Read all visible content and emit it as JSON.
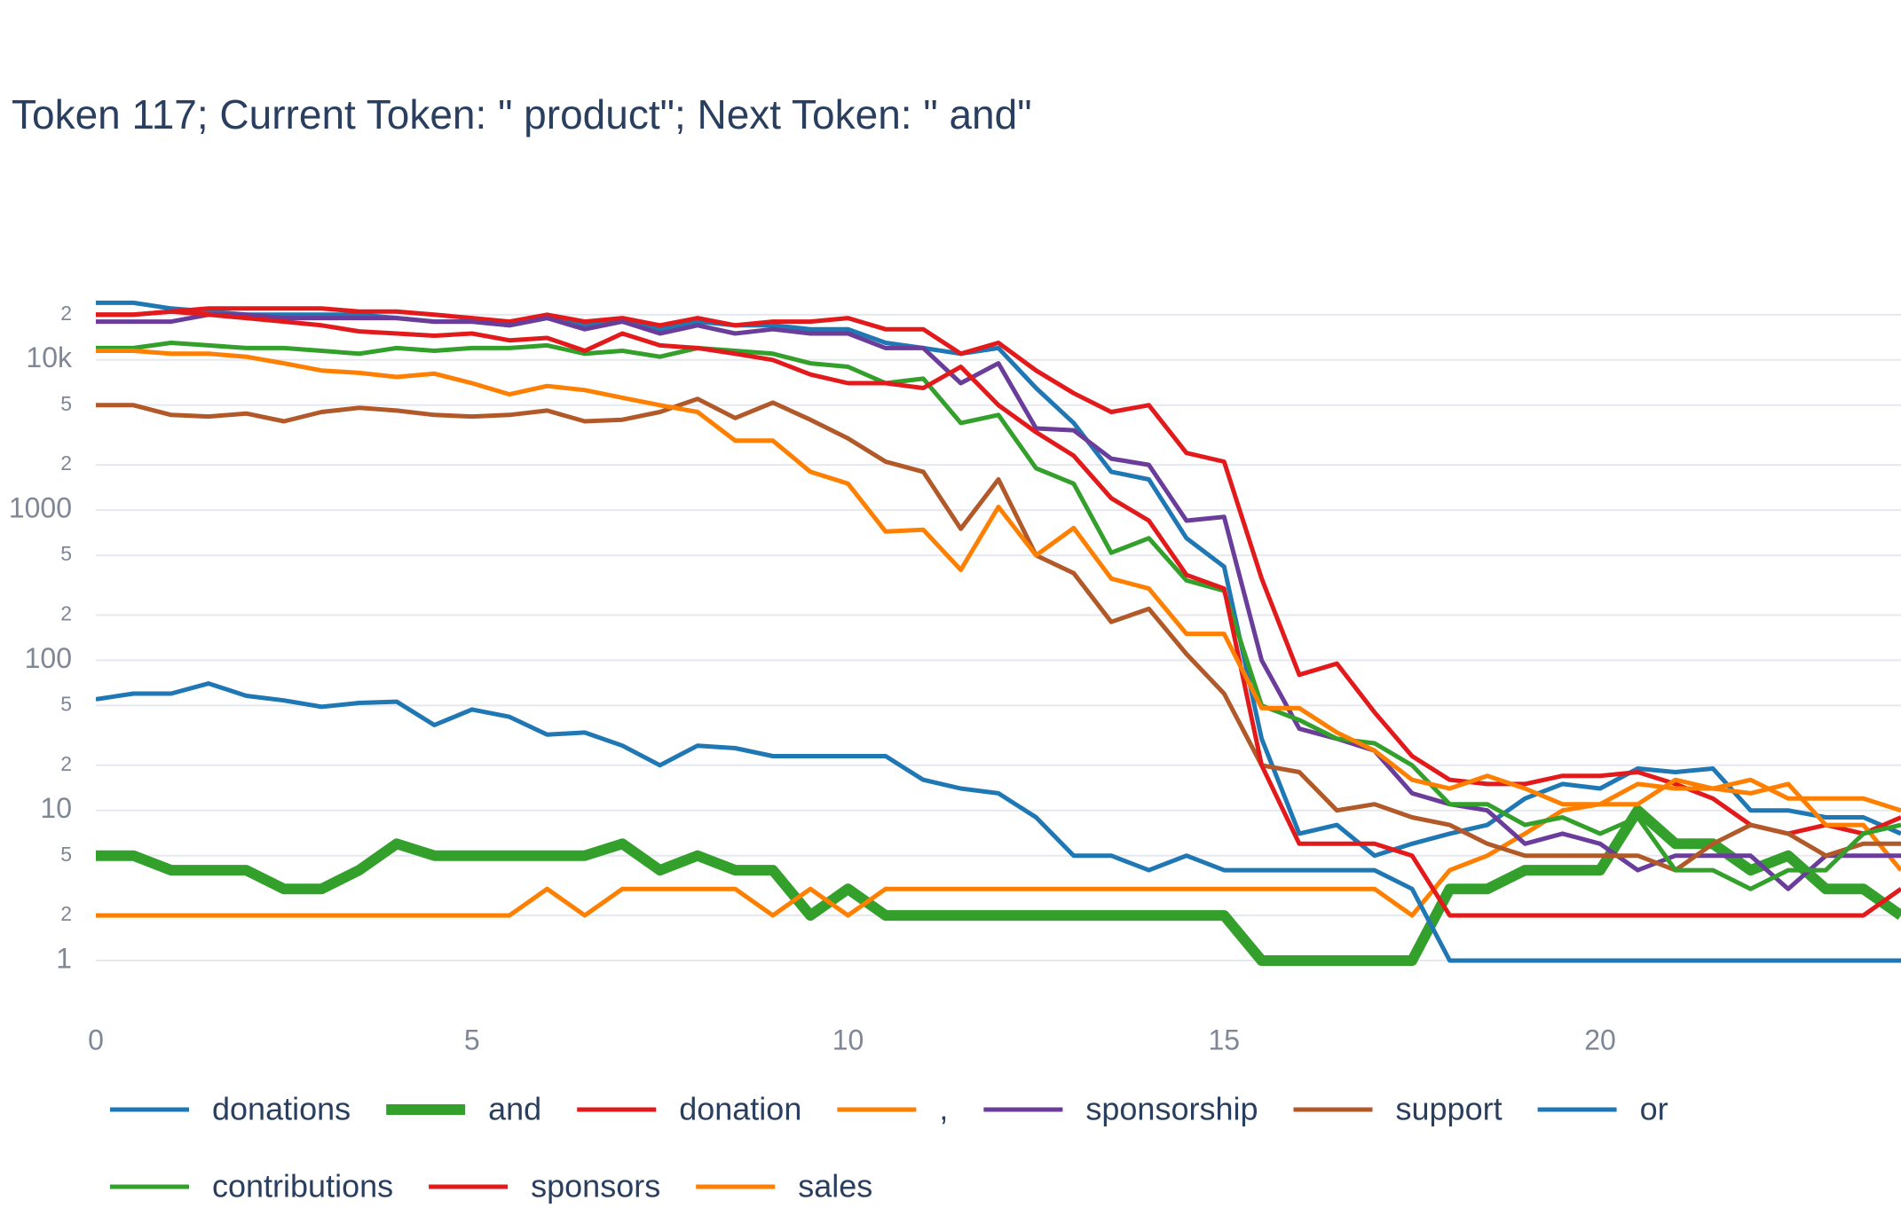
{
  "chart_data": {
    "type": "line",
    "title": "Token 117; Current Token: \" product\"; Next Token: \" and\"",
    "x": [
      0,
      0.5,
      1,
      1.5,
      2,
      2.5,
      3,
      3.5,
      4,
      4.5,
      5,
      5.5,
      6,
      6.5,
      7,
      7.5,
      8,
      8.5,
      9,
      9.5,
      10,
      10.5,
      11,
      11.5,
      12,
      12.5,
      13,
      13.5,
      14,
      14.5,
      15,
      15.5,
      16,
      16.5,
      17,
      17.5,
      18,
      18.5,
      19,
      19.5,
      20,
      20.5,
      21,
      21.5,
      22,
      22.5,
      23,
      23.5,
      24
    ],
    "xlim": [
      0,
      24
    ],
    "xticks": [
      0,
      5,
      10,
      15,
      20
    ],
    "ylim": [
      0.5,
      30000
    ],
    "log_y": true,
    "grid": true,
    "yticks": [
      1,
      2,
      5,
      10,
      {
        "value": 20,
        "label": "2"
      },
      {
        "value": 50,
        "label": "5"
      },
      100,
      {
        "value": 200,
        "label": "2"
      },
      {
        "value": 500,
        "label": "5"
      },
      1000,
      {
        "value": 2000,
        "label": "2"
      },
      {
        "value": 5000,
        "label": "5"
      },
      {
        "value": 10000,
        "label": "10k"
      },
      {
        "value": 20000,
        "label": "2"
      }
    ],
    "legend": "bottom",
    "series": [
      {
        "name": "donations",
        "color": "#1f78b4",
        "values": [
          24000,
          24000,
          22000,
          21000,
          20000,
          20000,
          20000,
          20000,
          19000,
          18000,
          18000,
          17000,
          19000,
          17000,
          18000,
          16000,
          18000,
          17000,
          17000,
          16000,
          16000,
          13000,
          12000,
          11000,
          12000,
          6500,
          3800,
          1800,
          1600,
          650,
          420,
          30,
          7,
          8,
          5,
          6,
          7,
          8,
          12,
          15,
          14,
          19,
          18,
          19,
          10,
          10,
          9,
          9,
          7
        ]
      },
      {
        "name": "and",
        "color": "#33a02c",
        "values": [
          5,
          5,
          4,
          4,
          4,
          3,
          3,
          4,
          6,
          5,
          5,
          5,
          5,
          5,
          6,
          4,
          5,
          4,
          4,
          2,
          3,
          2,
          2,
          2,
          2,
          2,
          2,
          2,
          2,
          2,
          2,
          1,
          1,
          1,
          1,
          1,
          3,
          3,
          4,
          4,
          4,
          10,
          6,
          6,
          4,
          5,
          3,
          3,
          2
        ]
      },
      {
        "name": "donation",
        "color": "#e31a1c",
        "values": [
          20000,
          20000,
          21000,
          22000,
          22000,
          22000,
          22000,
          21000,
          21000,
          20000,
          19000,
          18000,
          20000,
          18000,
          19000,
          17000,
          19000,
          17000,
          18000,
          18000,
          19000,
          16000,
          16000,
          11000,
          13000,
          8500,
          6000,
          4500,
          5000,
          2400,
          2100,
          350,
          80,
          95,
          45,
          23,
          16,
          15,
          15,
          17,
          17,
          18,
          15,
          12,
          8,
          7,
          8,
          7,
          9
        ]
      },
      {
        "name": ",",
        "color": "#ff7f00",
        "values": [
          2,
          2,
          2,
          2,
          2,
          2,
          2,
          2,
          2,
          2,
          2,
          2,
          3,
          2,
          3,
          3,
          3,
          3,
          2,
          3,
          2,
          3,
          3,
          3,
          3,
          3,
          3,
          3,
          3,
          3,
          3,
          3,
          3,
          3,
          3,
          2,
          4,
          5,
          7,
          10,
          11,
          11,
          16,
          14,
          13,
          15,
          8,
          8,
          4
        ]
      },
      {
        "name": "sponsorship",
        "color": "#6a3d9a",
        "values": [
          18000,
          18000,
          18000,
          20000,
          20000,
          19000,
          19000,
          19000,
          19000,
          18000,
          18000,
          17000,
          19000,
          16000,
          18000,
          15000,
          17000,
          15000,
          16000,
          15000,
          15000,
          12000,
          12000,
          7000,
          9500,
          3500,
          3400,
          2200,
          2000,
          850,
          900,
          100,
          35,
          30,
          25,
          13,
          11,
          10,
          6,
          7,
          6,
          4,
          5,
          5,
          5,
          3,
          5,
          5,
          5
        ]
      },
      {
        "name": "support",
        "color": "#b15928",
        "values": [
          5000,
          5000,
          4300,
          4200,
          4400,
          3900,
          4500,
          4800,
          4600,
          4300,
          4200,
          4300,
          4600,
          3900,
          4000,
          4500,
          5500,
          4100,
          5200,
          4000,
          3000,
          2100,
          1800,
          750,
          1600,
          500,
          380,
          180,
          220,
          110,
          60,
          20,
          18,
          10,
          11,
          9,
          8,
          6,
          5,
          5,
          5,
          5,
          4,
          6,
          8,
          7,
          5,
          6,
          6
        ]
      },
      {
        "name": "or",
        "color": "#1f78b4",
        "values": [
          55,
          60,
          60,
          70,
          58,
          54,
          49,
          52,
          53,
          37,
          47,
          42,
          32,
          33,
          27,
          20,
          27,
          26,
          23,
          23,
          23,
          23,
          16,
          14,
          13,
          9,
          5,
          5,
          4,
          5,
          4,
          4,
          4,
          4,
          4,
          3,
          1,
          1,
          1,
          1,
          1,
          1,
          1,
          1,
          1,
          1,
          1,
          1,
          1
        ]
      },
      {
        "name": "contributions",
        "color": "#33a02c",
        "values": [
          12000,
          12000,
          13000,
          12500,
          12000,
          12000,
          11500,
          11000,
          12000,
          11500,
          12000,
          12000,
          12500,
          11000,
          11500,
          10500,
          12000,
          11500,
          11000,
          9500,
          9000,
          7000,
          7500,
          3800,
          4300,
          1900,
          1500,
          520,
          650,
          340,
          290,
          50,
          40,
          30,
          28,
          20,
          11,
          11,
          8,
          9,
          7,
          9,
          4,
          4,
          3,
          4,
          4,
          7,
          8
        ]
      },
      {
        "name": "sponsors",
        "color": "#e31a1c",
        "values": [
          20000,
          20000,
          21000,
          20000,
          19000,
          18000,
          17000,
          15500,
          15000,
          14500,
          15000,
          13500,
          14000,
          11500,
          15000,
          12500,
          12000,
          11000,
          10000,
          8000,
          7000,
          7000,
          6500,
          9000,
          5000,
          3300,
          2300,
          1200,
          850,
          370,
          300,
          20,
          6,
          6,
          6,
          5,
          2,
          2,
          2,
          2,
          2,
          2,
          2,
          2,
          2,
          2,
          2,
          2,
          3
        ]
      },
      {
        "name": "sales",
        "color": "#ff7f00",
        "values": [
          11500,
          11500,
          11000,
          11000,
          10500,
          9500,
          8500,
          8200,
          7700,
          8100,
          7000,
          5900,
          6700,
          6300,
          5600,
          5000,
          4500,
          2900,
          2900,
          1800,
          1500,
          720,
          740,
          400,
          1050,
          500,
          760,
          350,
          300,
          150,
          150,
          48,
          48,
          33,
          25,
          16,
          14,
          17,
          14,
          11,
          11,
          15,
          14,
          14,
          16,
          12,
          12,
          12,
          10
        ]
      }
    ]
  }
}
